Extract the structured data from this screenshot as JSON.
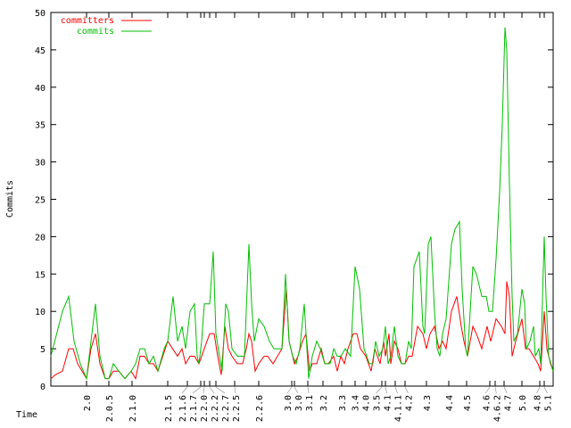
{
  "chart_data": {
    "type": "line",
    "title": "",
    "xlabel": "Time",
    "ylabel": "Commits",
    "ylim": [
      0,
      50
    ],
    "yticks": [
      0,
      5,
      10,
      15,
      20,
      25,
      30,
      35,
      40,
      45,
      50
    ],
    "xlim": [
      0,
      563
    ],
    "grid": false,
    "legend_position": "top-left",
    "xticks": [
      {
        "x": 40,
        "label": "2.0"
      },
      {
        "x": 65,
        "label": "2.0.5"
      },
      {
        "x": 91,
        "label": "2.1.0"
      },
      {
        "x": 131,
        "label": "2.1.5"
      },
      {
        "x": 153,
        "label": "2.1.6"
      },
      {
        "x": 168,
        "label": "2.1.7"
      },
      {
        "x": 172,
        "label": "2.2.0"
      },
      {
        "x": 178,
        "label": "2.2.2"
      },
      {
        "x": 185,
        "label": "2.2.7"
      },
      {
        "x": 206,
        "label": "2.2.5"
      },
      {
        "x": 233,
        "label": "2.2.6"
      },
      {
        "x": 270,
        "label": "3.0"
      },
      {
        "x": 273,
        "label": "3.0"
      },
      {
        "x": 288,
        "label": "3.1"
      },
      {
        "x": 305,
        "label": "3.2"
      },
      {
        "x": 326,
        "label": "3.3"
      },
      {
        "x": 341,
        "label": "3.4"
      },
      {
        "x": 353,
        "label": "4.0"
      },
      {
        "x": 371,
        "label": "3.5"
      },
      {
        "x": 375,
        "label": "4.1"
      },
      {
        "x": 386,
        "label": "4.1.1"
      },
      {
        "x": 397,
        "label": "4.2"
      },
      {
        "x": 421,
        "label": "4.3"
      },
      {
        "x": 446,
        "label": "4.4"
      },
      {
        "x": 466,
        "label": "4.5"
      },
      {
        "x": 492,
        "label": "4.6"
      },
      {
        "x": 498,
        "label": "4.6.2"
      },
      {
        "x": 508,
        "label": "4.7"
      },
      {
        "x": 528,
        "label": "5.0"
      },
      {
        "x": 548,
        "label": "4.8"
      },
      {
        "x": 553,
        "label": "5.1"
      }
    ],
    "series": [
      {
        "name": "committers",
        "color": "#ff0000",
        "x": [
          0,
          5,
          13,
          20,
          25,
          30,
          35,
          40,
          45,
          50,
          55,
          61,
          65,
          70,
          76,
          83,
          90,
          95,
          100,
          105,
          110,
          115,
          120,
          131,
          142,
          147,
          151,
          156,
          161,
          166,
          172,
          178,
          183,
          187,
          191,
          195,
          199,
          203,
          209,
          215,
          219,
          222,
          225,
          229,
          233,
          239,
          243,
          249,
          254,
          259,
          264,
          267,
          273,
          277,
          282,
          286,
          290,
          293,
          298,
          303,
          307,
          311,
          317,
          321,
          325,
          329,
          333,
          339,
          343,
          347,
          353,
          359,
          363,
          366,
          369,
          373,
          375,
          379,
          381,
          385,
          389,
          393,
          397,
          401,
          405,
          411,
          417,
          421,
          425,
          430,
          435,
          439,
          443,
          449,
          455,
          460,
          463,
          467,
          473,
          477,
          483,
          489,
          493,
          499,
          505,
          509,
          511,
          514,
          517,
          521,
          528,
          532,
          536,
          541,
          546,
          549,
          553,
          556,
          560,
          563
        ],
        "y": [
          1,
          1.5,
          2,
          5,
          5,
          3,
          2,
          1,
          5,
          7,
          3,
          1,
          1,
          2,
          2,
          1,
          2,
          1,
          4,
          4,
          3,
          3,
          2,
          6,
          4,
          5,
          3,
          4,
          4,
          3,
          5,
          7,
          7,
          4,
          1.5,
          8,
          5,
          4,
          3,
          3,
          5,
          7,
          6,
          2,
          3,
          4,
          4,
          3,
          4,
          5,
          13,
          6,
          3,
          4,
          6,
          7,
          2,
          3,
          3,
          5,
          3,
          3,
          4,
          2,
          4,
          3,
          5,
          7,
          7,
          5,
          4,
          2,
          5,
          4,
          3,
          6,
          4,
          7,
          3,
          6,
          5,
          3,
          3,
          4,
          4,
          8,
          7,
          5,
          7,
          8,
          5,
          6,
          5,
          10,
          12,
          8,
          6,
          4,
          8,
          7,
          5,
          8,
          6,
          9,
          8,
          7,
          14,
          12,
          4,
          6,
          9,
          5,
          5,
          4,
          3,
          2,
          10,
          5,
          3,
          2
        ]
      },
      {
        "name": "commits",
        "color": "#00c000",
        "x": [
          0,
          13,
          20,
          26,
          33,
          40,
          43,
          50,
          55,
          61,
          65,
          70,
          76,
          83,
          90,
          95,
          100,
          105,
          110,
          115,
          120,
          127,
          131,
          137,
          142,
          147,
          151,
          156,
          161,
          164,
          166,
          169,
          172,
          178,
          182,
          185,
          189,
          192,
          196,
          199,
          203,
          209,
          213,
          217,
          222,
          225,
          228,
          233,
          239,
          245,
          250,
          259,
          263,
          267,
          271,
          275,
          279,
          284,
          289,
          293,
          298,
          302,
          307,
          313,
          317,
          321,
          325,
          330,
          336,
          341,
          346,
          351,
          357,
          361,
          364,
          368,
          372,
          375,
          378,
          381,
          385,
          389,
          393,
          397,
          401,
          404,
          407,
          413,
          417,
          419,
          423,
          426,
          430,
          433,
          436,
          439,
          443,
          449,
          453,
          458,
          461,
          465,
          467,
          473,
          477,
          483,
          488,
          491,
          495,
          499,
          503,
          506,
          509,
          511,
          514,
          517,
          519,
          523,
          528,
          531,
          533,
          537,
          541,
          543,
          547,
          549,
          553,
          555,
          558,
          563
        ],
        "y": [
          4,
          10,
          12,
          6,
          3,
          1,
          4,
          11,
          4,
          1,
          1,
          3,
          2,
          1,
          2,
          3,
          5,
          5,
          3,
          4,
          2,
          5,
          6,
          12,
          6,
          8,
          5,
          10,
          11,
          4,
          3,
          6,
          11,
          11,
          18,
          7,
          4,
          2,
          11,
          10,
          5,
          4,
          4,
          4,
          19,
          11,
          6,
          9,
          8,
          6,
          5,
          5,
          15,
          6,
          4,
          3,
          5,
          11,
          1,
          4,
          6,
          5,
          3,
          3,
          5,
          4,
          4,
          5,
          4,
          16,
          13,
          5,
          3,
          3,
          6,
          4,
          5,
          8,
          3,
          4,
          8,
          4,
          3,
          3,
          6,
          5,
          16,
          18,
          8,
          7,
          19,
          20,
          10,
          5,
          4,
          7,
          9,
          19,
          21,
          22,
          13,
          5,
          4,
          16,
          15,
          12,
          12,
          10,
          10,
          17,
          26,
          35,
          48,
          45,
          27,
          12,
          6,
          7,
          13,
          11,
          5,
          6,
          8,
          4,
          5,
          3,
          20,
          12,
          4,
          2
        ]
      }
    ]
  }
}
